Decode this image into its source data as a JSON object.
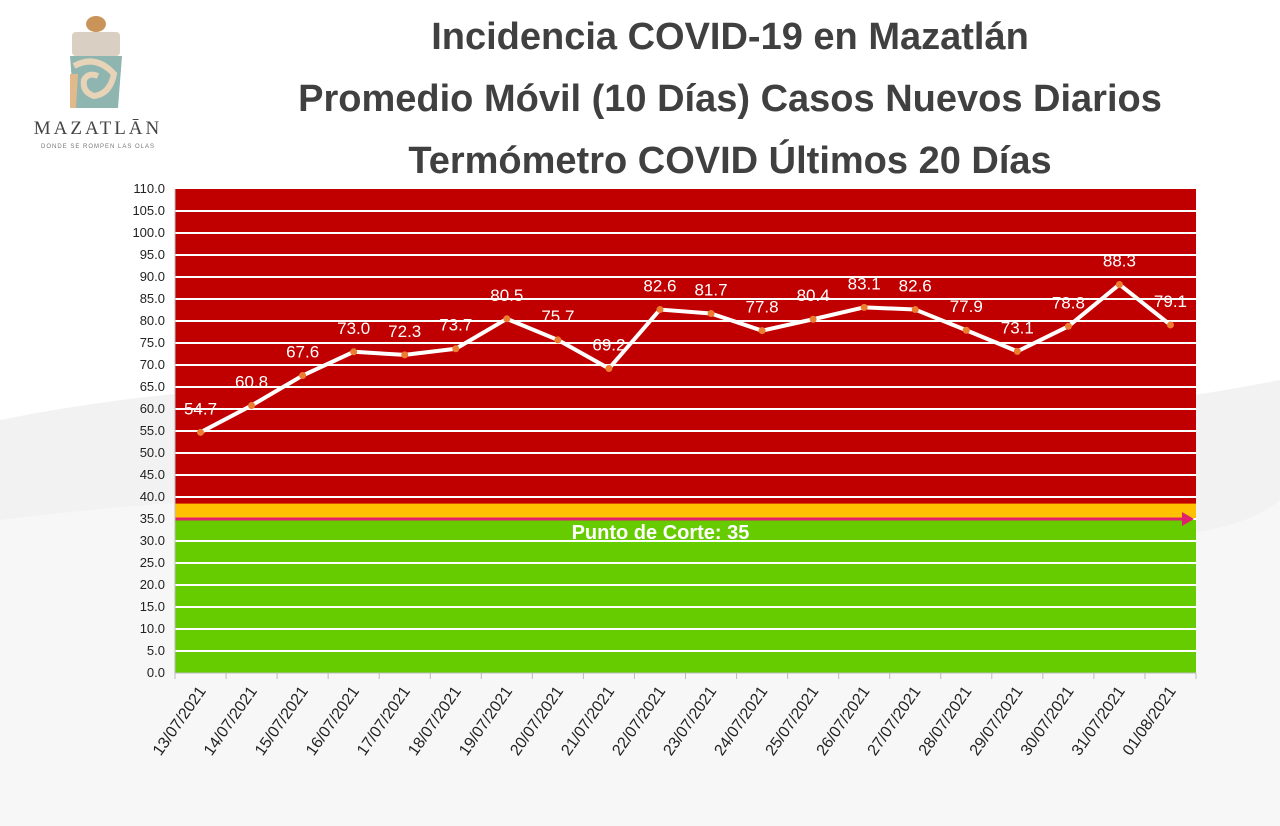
{
  "header": {
    "logo_text": "MAZATLĀN",
    "logo_tagline": "DONDE SE ROMPEN LAS OLAS",
    "title_line1": "Incidencia COVID-19 en Mazatlán",
    "title_line2": "Promedio Móvil (10 Días) Casos Nuevos Diarios",
    "title_line3": "Termómetro COVID Últimos 20 Días"
  },
  "colors": {
    "danger_zone": "#c00000",
    "safe_zone": "#66cc00",
    "cutoff_band": "#ffc000",
    "cutoff_arrow": "#e0206a",
    "line": "#ffffff",
    "marker": "#ed7d31"
  },
  "chart_data": {
    "type": "line",
    "title": "Termómetro COVID Últimos 20 Días",
    "xlabel": "",
    "ylabel": "",
    "ylim": [
      0,
      110
    ],
    "ytick_step": 5,
    "ytick_labels": [
      "0.0",
      "5.0",
      "10.0",
      "15.0",
      "20.0",
      "25.0",
      "30.0",
      "35.0",
      "40.0",
      "45.0",
      "50.0",
      "55.0",
      "60.0",
      "65.0",
      "70.0",
      "75.0",
      "80.0",
      "85.0",
      "90.0",
      "95.0",
      "100.0",
      "105.0",
      "110.0"
    ],
    "grid": true,
    "categories": [
      "13/07/2021",
      "14/07/2021",
      "15/07/2021",
      "16/07/2021",
      "17/07/2021",
      "18/07/2021",
      "19/07/2021",
      "20/07/2021",
      "21/07/2021",
      "22/07/2021",
      "23/07/2021",
      "24/07/2021",
      "25/07/2021",
      "26/07/2021",
      "27/07/2021",
      "28/07/2021",
      "29/07/2021",
      "30/07/2021",
      "31/07/2021",
      "01/08/2021"
    ],
    "values": [
      54.7,
      60.8,
      67.6,
      73.0,
      72.3,
      73.7,
      80.5,
      75.7,
      69.2,
      82.6,
      81.7,
      77.8,
      80.4,
      83.1,
      82.6,
      77.9,
      73.1,
      78.8,
      88.3,
      79.1
    ],
    "value_labels": [
      "54.7",
      "60.8",
      "67.6",
      "73.0",
      "72.3",
      "73.7",
      "80.5",
      "75.7",
      "69.2",
      "82.6",
      "81.7",
      "77.8",
      "80.4",
      "83.1",
      "82.6",
      "77.9",
      "73.1",
      "78.8",
      "88.3",
      "79.1"
    ],
    "cutoff": {
      "value": 35,
      "label": "Punto de Corte: 35"
    }
  }
}
